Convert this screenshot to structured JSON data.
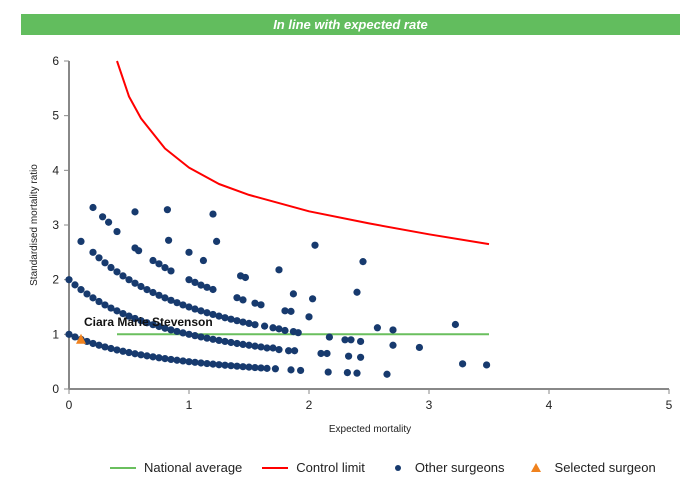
{
  "banner": {
    "text": "In line with expected rate",
    "color": "#62bd5e"
  },
  "chart_data": {
    "type": "scatter",
    "title": "",
    "xlabel": "Expected mortality",
    "ylabel": "Standardised mortality ratio",
    "xlim": [
      0,
      5
    ],
    "ylim": [
      0,
      6
    ],
    "xticks": [
      "0",
      "1",
      "2",
      "3",
      "4",
      "5"
    ],
    "yticks": [
      "0",
      "1",
      "2",
      "3",
      "4",
      "5",
      "6"
    ],
    "grid": false,
    "legend_position": "bottom",
    "legend": [
      {
        "label": "National average",
        "color": "#6abf5e",
        "marker": "line"
      },
      {
        "label": "Control limit",
        "color": "#ff0000",
        "marker": "line"
      },
      {
        "label": "Other surgeons",
        "color": "#173a6e",
        "marker": "circle"
      },
      {
        "label": "Selected surgeon",
        "color": "#f0821e",
        "marker": "triangle"
      }
    ],
    "national_average": [
      [
        0.4,
        1
      ],
      [
        3.5,
        1
      ]
    ],
    "control_limit": [
      [
        0.4,
        6
      ],
      [
        0.5,
        5.35
      ],
      [
        0.6,
        4.95
      ],
      [
        0.8,
        4.4
      ],
      [
        1.0,
        4.05
      ],
      [
        1.25,
        3.75
      ],
      [
        1.5,
        3.55
      ],
      [
        2.0,
        3.25
      ],
      [
        2.5,
        3.03
      ],
      [
        3.0,
        2.83
      ],
      [
        3.5,
        2.65
      ]
    ],
    "selected_surgeon": {
      "name": "Ciara Marie Stevenson",
      "x": 0.1,
      "y": 0.9
    },
    "other_surgeons": [
      [
        0,
        1
      ],
      [
        0.05,
        0.952
      ],
      [
        0.1,
        0.909
      ],
      [
        0.15,
        0.87
      ],
      [
        0.2,
        0.833
      ],
      [
        0.25,
        0.8
      ],
      [
        0.3,
        0.769
      ],
      [
        0.35,
        0.741
      ],
      [
        0.4,
        0.714
      ],
      [
        0.45,
        0.69
      ],
      [
        0.5,
        0.667
      ],
      [
        0.55,
        0.645
      ],
      [
        0.6,
        0.625
      ],
      [
        0.65,
        0.606
      ],
      [
        0.7,
        0.588
      ],
      [
        0.75,
        0.571
      ],
      [
        0.8,
        0.556
      ],
      [
        0.85,
        0.541
      ],
      [
        0.9,
        0.526
      ],
      [
        0.95,
        0.513
      ],
      [
        1.0,
        0.5
      ],
      [
        1.05,
        0.488
      ],
      [
        1.1,
        0.476
      ],
      [
        1.15,
        0.465
      ],
      [
        1.2,
        0.455
      ],
      [
        1.25,
        0.444
      ],
      [
        1.3,
        0.435
      ],
      [
        1.35,
        0.426
      ],
      [
        1.4,
        0.417
      ],
      [
        1.45,
        0.408
      ],
      [
        1.5,
        0.4
      ],
      [
        1.55,
        0.392
      ],
      [
        1.6,
        0.385
      ],
      [
        1.65,
        0.377
      ],
      [
        1.72,
        0.37
      ],
      [
        0,
        2
      ],
      [
        0.05,
        1.905
      ],
      [
        0.1,
        1.818
      ],
      [
        0.15,
        1.739
      ],
      [
        0.2,
        1.667
      ],
      [
        0.25,
        1.6
      ],
      [
        0.3,
        1.538
      ],
      [
        0.35,
        1.481
      ],
      [
        0.4,
        1.429
      ],
      [
        0.45,
        1.379
      ],
      [
        0.5,
        1.333
      ],
      [
        0.55,
        1.29
      ],
      [
        0.6,
        1.25
      ],
      [
        0.65,
        1.212
      ],
      [
        0.7,
        1.176
      ],
      [
        0.75,
        1.143
      ],
      [
        0.8,
        1.111
      ],
      [
        0.85,
        1.081
      ],
      [
        0.9,
        1.053
      ],
      [
        0.95,
        1.026
      ],
      [
        1.0,
        1
      ],
      [
        1.05,
        0.976
      ],
      [
        1.1,
        0.952
      ],
      [
        1.15,
        0.93
      ],
      [
        1.2,
        0.909
      ],
      [
        1.25,
        0.889
      ],
      [
        1.3,
        0.87
      ],
      [
        1.35,
        0.851
      ],
      [
        1.4,
        0.833
      ],
      [
        1.45,
        0.816
      ],
      [
        1.5,
        0.8
      ],
      [
        1.55,
        0.784
      ],
      [
        1.6,
        0.769
      ],
      [
        0.2,
        2.5
      ],
      [
        0.25,
        2.4
      ],
      [
        0.3,
        2.308
      ],
      [
        0.35,
        2.222
      ],
      [
        0.4,
        2.143
      ],
      [
        0.45,
        2.069
      ],
      [
        0.5,
        2
      ],
      [
        0.55,
        1.935
      ],
      [
        0.6,
        1.875
      ],
      [
        0.65,
        1.818
      ],
      [
        0.7,
        1.765
      ],
      [
        0.75,
        1.714
      ],
      [
        0.8,
        1.667
      ],
      [
        0.85,
        1.622
      ],
      [
        0.9,
        1.579
      ],
      [
        0.95,
        1.538
      ],
      [
        1.0,
        1.5
      ],
      [
        1.05,
        1.463
      ],
      [
        1.1,
        1.429
      ],
      [
        1.15,
        1.395
      ],
      [
        1.2,
        1.364
      ],
      [
        1.25,
        1.333
      ],
      [
        1.3,
        1.304
      ],
      [
        1.35,
        1.277
      ],
      [
        1.4,
        1.25
      ],
      [
        1.45,
        1.224
      ],
      [
        1.5,
        1.2
      ],
      [
        1.55,
        1.176
      ],
      [
        0.55,
        2.58
      ],
      [
        0.58,
        2.53
      ],
      [
        0.7,
        2.35
      ],
      [
        0.75,
        2.29
      ],
      [
        0.8,
        2.22
      ],
      [
        0.85,
        2.16
      ],
      [
        1.0,
        2.0
      ],
      [
        1.05,
        1.95
      ],
      [
        1.1,
        1.9
      ],
      [
        1.15,
        1.86
      ],
      [
        1.2,
        1.82
      ],
      [
        1.4,
        1.67
      ],
      [
        1.45,
        1.63
      ],
      [
        1.55,
        1.57
      ],
      [
        1.6,
        1.54
      ],
      [
        0.1,
        2.7
      ],
      [
        0.2,
        3.32
      ],
      [
        0.28,
        3.15
      ],
      [
        0.33,
        3.05
      ],
      [
        0.4,
        2.88
      ],
      [
        0.55,
        3.24
      ],
      [
        0.82,
        3.28
      ],
      [
        0.83,
        2.72
      ],
      [
        1.2,
        3.2
      ],
      [
        1.23,
        2.7
      ],
      [
        1.0,
        2.5
      ],
      [
        1.12,
        2.35
      ],
      [
        1.43,
        2.07
      ],
      [
        1.47,
        2.04
      ],
      [
        1.75,
        2.18
      ],
      [
        2.05,
        2.63
      ],
      [
        2.45,
        2.33
      ],
      [
        1.87,
        1.74
      ],
      [
        2.03,
        1.65
      ],
      [
        2.4,
        1.77
      ],
      [
        1.8,
        1.43
      ],
      [
        1.85,
        1.42
      ],
      [
        2.0,
        1.32
      ],
      [
        1.63,
        1.15
      ],
      [
        1.7,
        1.12
      ],
      [
        1.75,
        1.1
      ],
      [
        1.8,
        1.07
      ],
      [
        1.87,
        1.05
      ],
      [
        1.91,
        1.03
      ],
      [
        2.17,
        0.95
      ],
      [
        2.3,
        0.9
      ],
      [
        2.35,
        0.9
      ],
      [
        2.43,
        0.87
      ],
      [
        2.57,
        1.12
      ],
      [
        2.7,
        1.08
      ],
      [
        3.22,
        1.18
      ],
      [
        2.7,
        0.8
      ],
      [
        2.92,
        0.76
      ],
      [
        2.1,
        0.65
      ],
      [
        2.15,
        0.65
      ],
      [
        2.33,
        0.6
      ],
      [
        2.43,
        0.58
      ],
      [
        1.88,
        0.7
      ],
      [
        1.83,
        0.7
      ],
      [
        1.75,
        0.72
      ],
      [
        1.65,
        0.75
      ],
      [
        1.7,
        0.75
      ],
      [
        1.85,
        0.35
      ],
      [
        1.93,
        0.34
      ],
      [
        2.16,
        0.31
      ],
      [
        2.32,
        0.3
      ],
      [
        2.4,
        0.29
      ],
      [
        2.65,
        0.27
      ],
      [
        3.28,
        0.46
      ],
      [
        3.48,
        0.44
      ]
    ]
  }
}
